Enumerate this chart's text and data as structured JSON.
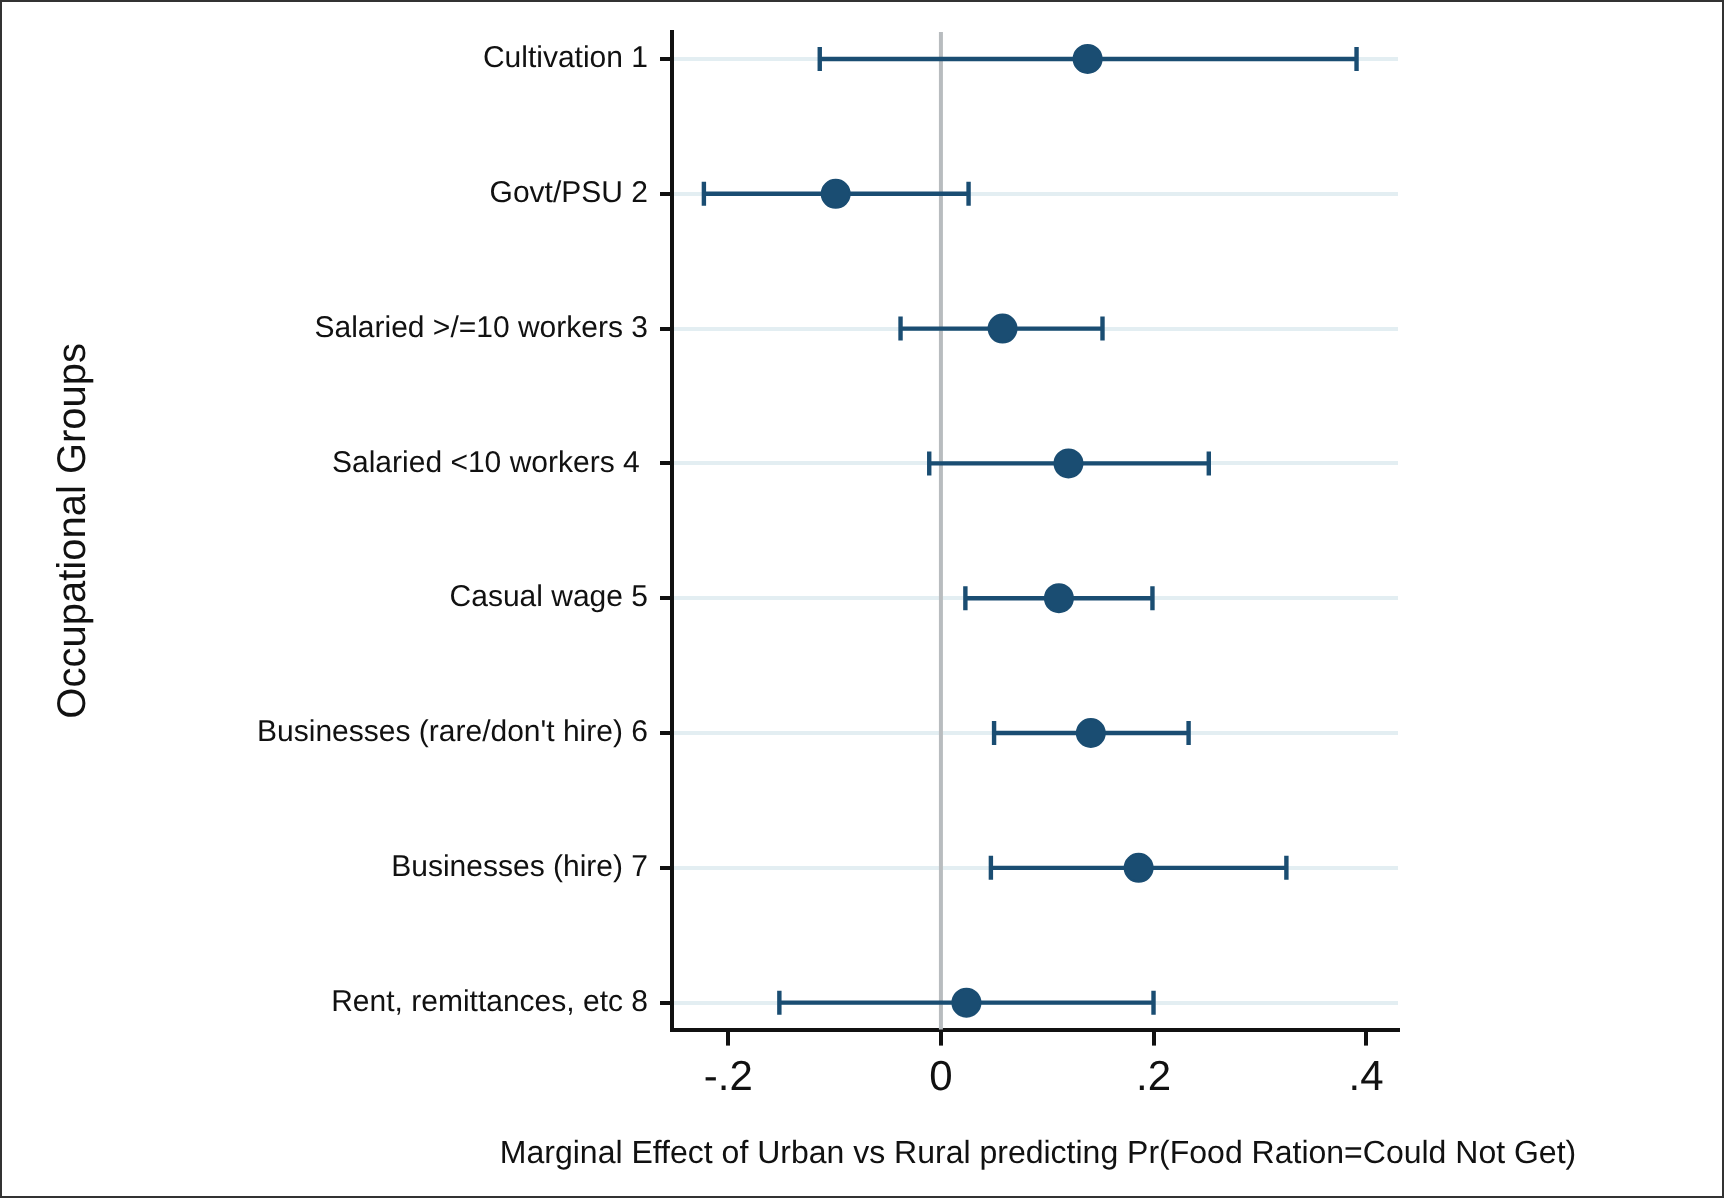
{
  "chart_data": {
    "type": "scatter",
    "orientation": "horizontal",
    "categories": [
      "Cultivation 1",
      "Govt/PSU 2",
      "Salaried >/=10 workers 3",
      "Salaried <10 workers 4 ",
      "Casual wage 5",
      "Businesses (rare/don't hire) 6",
      "Businesses (hire) 7",
      "Rent, remittances, etc 8"
    ],
    "color": "#1a4d72",
    "values": [
      0.138,
      -0.099,
      0.058,
      0.12,
      0.111,
      0.141,
      0.186,
      0.024
    ],
    "errors": [
      [
        -0.114,
        0.391
      ],
      [
        -0.223,
        0.026
      ],
      [
        -0.038,
        0.152
      ],
      [
        -0.011,
        0.252
      ],
      [
        0.023,
        0.199
      ],
      [
        0.05,
        0.233
      ],
      [
        0.047,
        0.325
      ],
      [
        -0.152,
        0.2
      ]
    ],
    "xlim": [
      -0.253,
      0.43
    ],
    "xticks": [
      {
        "value": -0.2,
        "label": "-.2"
      },
      0,
      {
        "value": 0.2,
        "label": ".2"
      },
      {
        "value": 0.4,
        "label": ".4"
      }
    ],
    "xlabel": "Marginal Effect of Urban vs Rural predicting Pr(Food Ration=Could Not Get)",
    "ylabel": "Occupational Groups",
    "ref_lines": [
      {
        "axis": "x",
        "value": 0,
        "color": "#b8bcbf"
      }
    ],
    "grid": "y",
    "legend": false,
    "marker": "circle"
  }
}
